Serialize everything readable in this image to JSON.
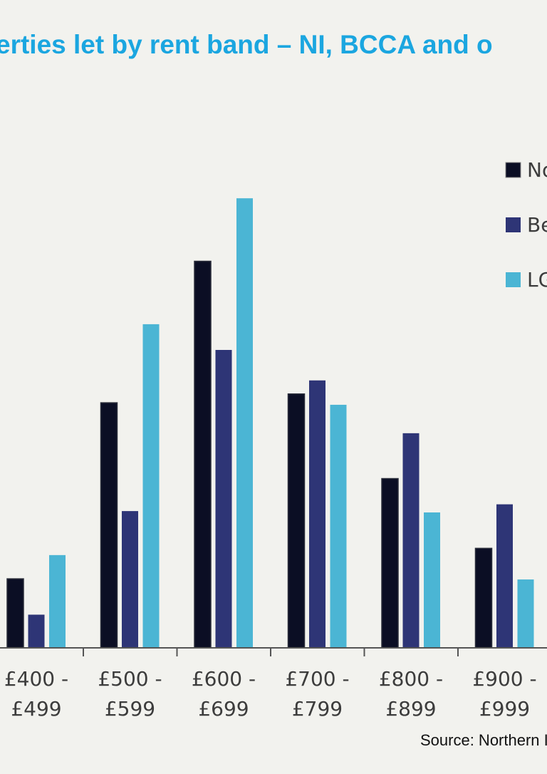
{
  "chart_data": {
    "type": "bar",
    "title": "erties let by rent band – NI, BCCA and o",
    "categories": [
      [
        "£400 -",
        "£499"
      ],
      [
        "£500 -",
        "£599"
      ],
      [
        "£600 -",
        "£699"
      ],
      [
        "£700 -",
        "£799"
      ],
      [
        "£800 -",
        "£899"
      ],
      [
        "£900 -",
        "£999"
      ]
    ],
    "series": [
      {
        "name": "No",
        "color": "#0b0e24",
        "values": [
          102,
          362,
          571,
          375,
          250,
          147
        ]
      },
      {
        "name": "Be",
        "color": "#2e3576",
        "values": [
          49,
          202,
          440,
          395,
          317,
          212
        ]
      },
      {
        "name": "LG",
        "color": "#4bb5d4",
        "values": [
          137,
          478,
          664,
          359,
          200,
          101
        ]
      }
    ],
    "ylim": [
      0,
      700
    ],
    "grid": false,
    "legend": "top-right",
    "source": "Source: Northern I"
  }
}
